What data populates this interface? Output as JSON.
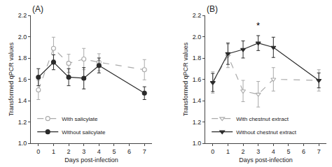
{
  "chart_data": [
    {
      "type": "line",
      "title": "(A)",
      "xlabel": "Days post-infection",
      "ylabel": "Transformed qPCR values",
      "x": [
        0,
        1,
        2,
        3,
        4,
        7
      ],
      "series": [
        {
          "name": "With salicylate",
          "color": "#aaaaaa",
          "marker": "circle-open",
          "line_style": "dashed",
          "values": [
            1.5,
            1.89,
            1.75,
            1.79,
            1.76,
            1.69
          ],
          "errors": [
            0.09,
            0.105,
            0.085,
            0.1,
            0.08,
            0.095
          ]
        },
        {
          "name": "Without salicylate",
          "color": "#2a2a2a",
          "marker": "circle",
          "line_style": "solid",
          "values": [
            1.62,
            1.76,
            1.62,
            1.61,
            1.73,
            1.47
          ],
          "errors": [
            0.08,
            0.07,
            0.08,
            0.1,
            0.07,
            0.06
          ]
        }
      ],
      "xlim": [
        -0.5,
        7.5
      ],
      "xticks": [
        0,
        1,
        2,
        3,
        4,
        5,
        6,
        7
      ],
      "ylim": [
        1.0,
        2.2
      ],
      "yticks": [
        {
          "value": 1.0,
          "label": "1.0"
        },
        1.2,
        1.4,
        1.6,
        1.8,
        {
          "value": 2.0,
          "label": "2.0"
        },
        2.2
      ],
      "grid": false,
      "legend": "lower left"
    },
    {
      "type": "line",
      "title": "(B)",
      "xlabel": "Days post-infection",
      "ylabel": "Transformed qPCR values",
      "x": [
        0,
        1,
        2,
        3,
        4,
        7
      ],
      "series": [
        {
          "name": "With chestnut extract",
          "color": "#aaaaaa",
          "marker": "triangle-down-open",
          "line_style": "dashed",
          "values": [
            1.57,
            1.82,
            1.49,
            1.46,
            1.6,
            1.59
          ],
          "errors": [
            0.1,
            0.11,
            0.1,
            0.12,
            0.11,
            0.1
          ]
        },
        {
          "name": "Without chestnut extract",
          "color": "#2a2a2a",
          "marker": "triangle-down",
          "line_style": "solid",
          "values": [
            1.57,
            1.84,
            1.88,
            1.94,
            1.9,
            1.59
          ],
          "errors": [
            0.085,
            0.1,
            0.08,
            0.07,
            0.095,
            0.07
          ]
        }
      ],
      "xlim": [
        -0.5,
        7.5
      ],
      "xticks": [
        0,
        1,
        2,
        3,
        4,
        5,
        6,
        7
      ],
      "ylim": [
        1.0,
        2.2
      ],
      "yticks": [
        {
          "value": 1.0,
          "label": "1.0"
        },
        1.2,
        1.4,
        1.6,
        1.8,
        {
          "value": 2.0,
          "label": "2.0"
        },
        2.2
      ],
      "annotations": [
        {
          "x": 3,
          "y": 2.04,
          "text": "*"
        }
      ],
      "grid": false,
      "legend": "lower left"
    }
  ]
}
